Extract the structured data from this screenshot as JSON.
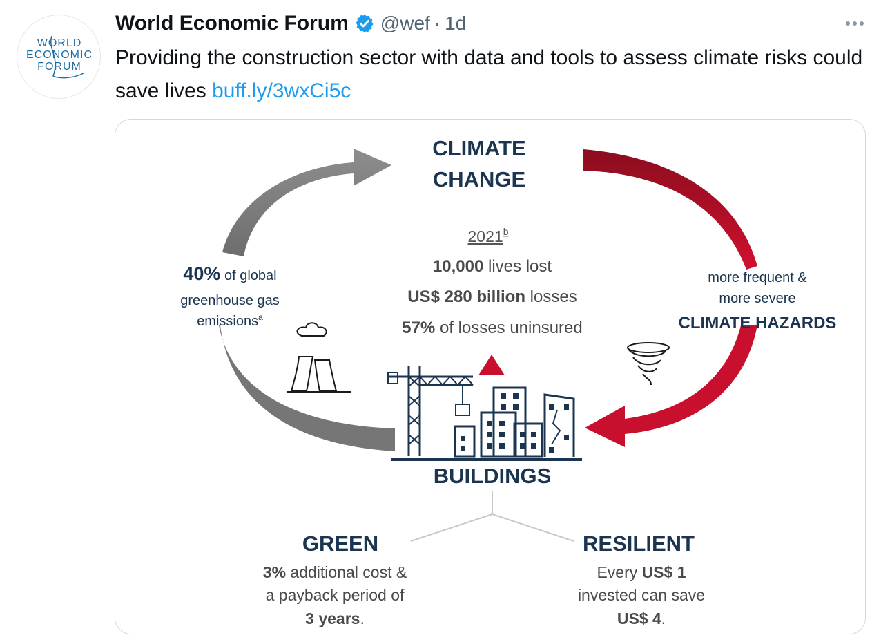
{
  "tweet": {
    "author_name": "World Economic Forum",
    "handle": "@wef",
    "separator": "·",
    "time": "1d",
    "text": "Providing the construction sector with data and tools to assess climate risks could save lives",
    "link_text": "buff.ly/3wxCi5c"
  },
  "avatar": {
    "logo_line1": "WORLD",
    "logo_line2": "ECONOMIC",
    "logo_line3": "FORUM",
    "logo_color": "#1d6fa8"
  },
  "icons": {
    "verified": "verified-badge-icon",
    "more": "more-options-icon"
  },
  "infographic": {
    "colors": {
      "navy": "#1b3450",
      "gray_arrow": "#7a7a7a",
      "red": "#b3122a",
      "text_gray": "#4a4a4a"
    },
    "climate_line1": "CLIMATE",
    "climate_line2": "CHANGE",
    "year": "2021",
    "year_sup": "b",
    "stat1_bold": "10,000",
    "stat1_rest": " lives lost",
    "stat2_bold": "US$ 280 billion",
    "stat2_rest": " losses",
    "stat3_bold": "57%",
    "stat3_rest": " of losses uninsured",
    "left_bold": "40%",
    "left_rest": " of global",
    "left_line2": "greenhouse gas",
    "left_line3": "emissions",
    "left_sup": "a",
    "right_line1": "more frequent &",
    "right_line2": "more severe",
    "right_line3": "CLIMATE HAZARDS",
    "buildings": "BUILDINGS",
    "green_title": "GREEN",
    "green_bold1": "3%",
    "green_rest1": " additional cost &",
    "green_line2": "a payback period of",
    "green_bold3": "3 years",
    "green_end3": ".",
    "resilient_title": "RESILIENT",
    "resilient_pre1": "Every ",
    "resilient_bold1": "US$ 1",
    "resilient_line2": "invested can save",
    "resilient_bold3": "US$ 4",
    "resilient_end3": "."
  }
}
